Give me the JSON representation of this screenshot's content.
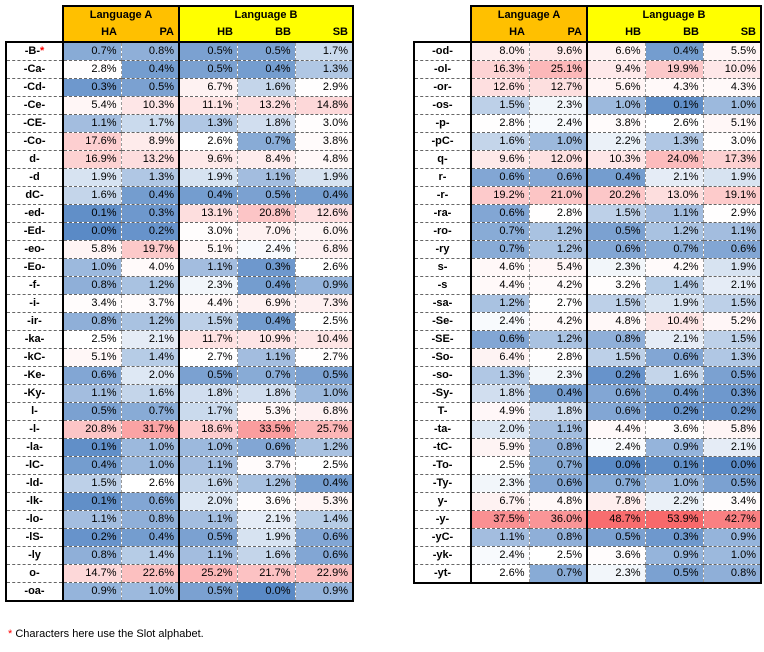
{
  "headers": {
    "language_a": "Language A",
    "language_b": "Language B",
    "cols": [
      "HA",
      "PA",
      "HB",
      "BB",
      "SB"
    ]
  },
  "footnote": {
    "marker": "*",
    "text": "Characters here use the Slot alphabet."
  },
  "colors": {
    "language_a_header": "#ffc000",
    "language_b_header": "#ffff00",
    "low": "#5a8ac6",
    "mid": "#ffffff",
    "high": "#f8696b"
  },
  "left_rows": [
    {
      "label": "-B-",
      "star": true,
      "v": [
        "0.7%",
        "0.8%",
        "0.5%",
        "0.5%",
        "1.7%"
      ]
    },
    {
      "label": "-Ca-",
      "v": [
        "2.8%",
        "0.4%",
        "0.5%",
        "0.4%",
        "1.3%"
      ]
    },
    {
      "label": "-Cd-",
      "v": [
        "0.3%",
        "0.5%",
        "6.7%",
        "1.6%",
        "2.9%"
      ]
    },
    {
      "label": "-Ce-",
      "v": [
        "5.4%",
        "10.3%",
        "11.1%",
        "13.2%",
        "14.8%"
      ]
    },
    {
      "label": "-CE-",
      "v": [
        "1.1%",
        "1.7%",
        "1.3%",
        "1.8%",
        "3.0%"
      ]
    },
    {
      "label": "-Co-",
      "v": [
        "17.6%",
        "8.9%",
        "2.6%",
        "0.7%",
        "3.8%"
      ]
    },
    {
      "label": "d-",
      "v": [
        "16.9%",
        "13.2%",
        "9.6%",
        "8.4%",
        "4.8%"
      ]
    },
    {
      "label": "-d",
      "v": [
        "1.9%",
        "1.3%",
        "1.9%",
        "1.1%",
        "1.9%"
      ]
    },
    {
      "label": "dC-",
      "v": [
        "1.6%",
        "0.4%",
        "0.4%",
        "0.5%",
        "0.4%"
      ]
    },
    {
      "label": "-ed-",
      "v": [
        "0.1%",
        "0.3%",
        "13.1%",
        "20.8%",
        "12.6%"
      ]
    },
    {
      "label": "-Ed-",
      "v": [
        "0.0%",
        "0.2%",
        "3.0%",
        "7.0%",
        "6.0%"
      ]
    },
    {
      "label": "-eo-",
      "v": [
        "5.8%",
        "19.7%",
        "5.1%",
        "2.4%",
        "6.8%"
      ]
    },
    {
      "label": "-Eo-",
      "v": [
        "1.0%",
        "4.0%",
        "1.1%",
        "0.3%",
        "2.6%"
      ]
    },
    {
      "label": "-f-",
      "v": [
        "0.8%",
        "1.2%",
        "2.3%",
        "0.4%",
        "0.9%"
      ]
    },
    {
      "label": "-i-",
      "v": [
        "3.4%",
        "3.7%",
        "4.4%",
        "6.9%",
        "7.3%"
      ]
    },
    {
      "label": "-ir-",
      "v": [
        "0.8%",
        "1.2%",
        "1.5%",
        "0.4%",
        "2.5%"
      ]
    },
    {
      "label": "-ka-",
      "v": [
        "2.5%",
        "2.1%",
        "11.7%",
        "10.9%",
        "10.4%"
      ]
    },
    {
      "label": "-kC-",
      "v": [
        "5.1%",
        "1.4%",
        "2.7%",
        "1.1%",
        "2.7%"
      ]
    },
    {
      "label": "-Ke-",
      "v": [
        "0.6%",
        "2.0%",
        "0.5%",
        "0.7%",
        "0.5%"
      ]
    },
    {
      "label": "-Ky-",
      "v": [
        "1.1%",
        "1.6%",
        "1.8%",
        "1.8%",
        "1.0%"
      ]
    },
    {
      "label": "l-",
      "v": [
        "0.5%",
        "0.7%",
        "1.7%",
        "5.3%",
        "6.8%"
      ]
    },
    {
      "label": "-l-",
      "v": [
        "20.8%",
        "31.7%",
        "18.6%",
        "33.5%",
        "25.7%"
      ]
    },
    {
      "label": "-la-",
      "v": [
        "0.1%",
        "1.0%",
        "1.0%",
        "0.6%",
        "1.2%"
      ]
    },
    {
      "label": "-lC-",
      "v": [
        "0.4%",
        "1.0%",
        "1.1%",
        "3.7%",
        "2.5%"
      ]
    },
    {
      "label": "-ld-",
      "v": [
        "1.5%",
        "2.6%",
        "1.6%",
        "1.2%",
        "0.4%"
      ]
    },
    {
      "label": "-lk-",
      "v": [
        "0.1%",
        "0.6%",
        "2.0%",
        "3.6%",
        "5.3%"
      ]
    },
    {
      "label": "-lo-",
      "v": [
        "1.1%",
        "0.8%",
        "1.1%",
        "2.1%",
        "1.4%"
      ]
    },
    {
      "label": "-lS-",
      "v": [
        "0.2%",
        "0.4%",
        "0.5%",
        "1.9%",
        "0.6%"
      ]
    },
    {
      "label": "-ly",
      "v": [
        "0.8%",
        "1.4%",
        "1.1%",
        "1.6%",
        "0.6%"
      ]
    },
    {
      "label": "o-",
      "v": [
        "14.7%",
        "22.6%",
        "25.2%",
        "21.7%",
        "22.9%"
      ]
    },
    {
      "label": "-oa-",
      "v": [
        "0.9%",
        "1.0%",
        "0.5%",
        "0.0%",
        "0.9%"
      ]
    }
  ],
  "right_rows": [
    {
      "label": "-od-",
      "v": [
        "8.0%",
        "9.6%",
        "6.6%",
        "0.4%",
        "5.5%"
      ]
    },
    {
      "label": "-ol-",
      "v": [
        "16.3%",
        "25.1%",
        "9.4%",
        "19.9%",
        "10.0%"
      ]
    },
    {
      "label": "-or-",
      "v": [
        "12.6%",
        "12.7%",
        "5.6%",
        "4.3%",
        "4.3%"
      ]
    },
    {
      "label": "-os-",
      "v": [
        "1.5%",
        "2.3%",
        "1.0%",
        "0.1%",
        "1.0%"
      ]
    },
    {
      "label": "-p-",
      "v": [
        "2.8%",
        "2.4%",
        "3.8%",
        "2.6%",
        "5.1%"
      ]
    },
    {
      "label": "-pC-",
      "v": [
        "1.6%",
        "1.0%",
        "2.2%",
        "1.3%",
        "3.0%"
      ]
    },
    {
      "label": "q-",
      "v": [
        "9.6%",
        "12.0%",
        "10.3%",
        "24.0%",
        "17.3%"
      ]
    },
    {
      "label": "r-",
      "v": [
        "0.6%",
        "0.6%",
        "0.4%",
        "2.1%",
        "1.9%"
      ]
    },
    {
      "label": "-r-",
      "v": [
        "19.2%",
        "21.0%",
        "20.2%",
        "13.0%",
        "19.1%"
      ]
    },
    {
      "label": "-ra-",
      "v": [
        "0.6%",
        "2.8%",
        "1.5%",
        "1.1%",
        "2.9%"
      ]
    },
    {
      "label": "-ro-",
      "v": [
        "0.7%",
        "1.2%",
        "0.5%",
        "1.2%",
        "1.1%"
      ]
    },
    {
      "label": "-ry",
      "v": [
        "0.7%",
        "1.2%",
        "0.6%",
        "0.7%",
        "0.6%"
      ]
    },
    {
      "label": "s-",
      "v": [
        "4.6%",
        "5.4%",
        "2.3%",
        "4.2%",
        "1.9%"
      ]
    },
    {
      "label": "-s",
      "v": [
        "4.4%",
        "4.2%",
        "3.2%",
        "1.4%",
        "2.1%"
      ]
    },
    {
      "label": "-sa-",
      "v": [
        "1.2%",
        "2.7%",
        "1.5%",
        "1.9%",
        "1.5%"
      ]
    },
    {
      "label": "-Se-",
      "v": [
        "2.4%",
        "4.2%",
        "4.8%",
        "10.4%",
        "5.2%"
      ]
    },
    {
      "label": "-SE-",
      "v": [
        "0.6%",
        "1.2%",
        "0.8%",
        "2.1%",
        "1.5%"
      ]
    },
    {
      "label": "-So-",
      "v": [
        "6.4%",
        "2.8%",
        "1.5%",
        "0.6%",
        "1.3%"
      ]
    },
    {
      "label": "-so-",
      "v": [
        "1.3%",
        "2.3%",
        "0.2%",
        "1.6%",
        "0.5%"
      ]
    },
    {
      "label": "-Sy-",
      "v": [
        "1.8%",
        "0.4%",
        "0.6%",
        "0.4%",
        "0.3%"
      ]
    },
    {
      "label": "T-",
      "v": [
        "4.9%",
        "1.8%",
        "0.6%",
        "0.2%",
        "0.2%"
      ]
    },
    {
      "label": "-ta-",
      "v": [
        "2.0%",
        "1.1%",
        "4.4%",
        "3.6%",
        "5.8%"
      ]
    },
    {
      "label": "-tC-",
      "v": [
        "5.9%",
        "0.8%",
        "2.4%",
        "0.9%",
        "2.1%"
      ]
    },
    {
      "label": "-To-",
      "v": [
        "2.5%",
        "0.7%",
        "0.0%",
        "0.1%",
        "0.0%"
      ]
    },
    {
      "label": "-Ty-",
      "v": [
        "2.3%",
        "0.6%",
        "0.7%",
        "1.0%",
        "0.5%"
      ]
    },
    {
      "label": "y-",
      "v": [
        "6.7%",
        "4.8%",
        "7.8%",
        "2.2%",
        "3.4%"
      ]
    },
    {
      "label": "-y-",
      "v": [
        "37.5%",
        "36.0%",
        "48.7%",
        "53.9%",
        "42.7%"
      ]
    },
    {
      "label": "-yC-",
      "v": [
        "1.1%",
        "0.8%",
        "0.5%",
        "0.3%",
        "0.9%"
      ]
    },
    {
      "label": "-yk-",
      "v": [
        "2.4%",
        "2.5%",
        "3.6%",
        "0.9%",
        "1.0%"
      ]
    },
    {
      "label": "-yt-",
      "v": [
        "2.6%",
        "0.7%",
        "2.3%",
        "0.5%",
        "0.8%"
      ]
    }
  ]
}
